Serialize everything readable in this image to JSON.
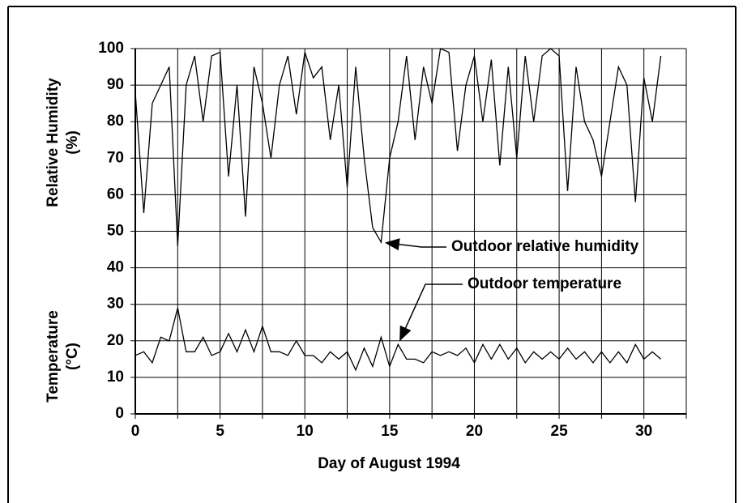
{
  "chart_data": {
    "type": "line",
    "xlabel": "Day of August 1994",
    "ylabel_top": [
      "Relative Humidity",
      "(%)"
    ],
    "ylabel_bottom": [
      "Temperature",
      "(°C)"
    ],
    "x": [
      0,
      0.5,
      1,
      1.5,
      2,
      2.5,
      3,
      3.5,
      4,
      4.5,
      5,
      5.5,
      6,
      6.5,
      7,
      7.5,
      8,
      8.5,
      9,
      9.5,
      10,
      10.5,
      11,
      11.5,
      12,
      12.5,
      13,
      13.5,
      14,
      14.5,
      15,
      15.5,
      16,
      16.5,
      17,
      17.5,
      18,
      18.5,
      19,
      19.5,
      20,
      20.5,
      21,
      21.5,
      22,
      22.5,
      23,
      23.5,
      24,
      24.5,
      25,
      25.5,
      26,
      26.5,
      27,
      27.5,
      28,
      28.5,
      29,
      29.5,
      30,
      30.5,
      31
    ],
    "series": [
      {
        "name": "Outdoor relative humidity",
        "color": "#000000",
        "values": [
          88,
          55,
          85,
          90,
          95,
          46,
          90,
          98,
          80,
          98,
          99,
          65,
          90,
          54,
          95,
          85,
          70,
          90,
          98,
          82,
          99,
          92,
          95,
          75,
          90,
          62,
          95,
          70,
          51,
          47,
          70,
          80,
          98,
          75,
          95,
          85,
          100,
          99,
          72,
          90,
          98,
          80,
          97,
          68,
          95,
          70,
          98,
          80,
          98,
          100,
          98,
          61,
          95,
          80,
          75,
          65,
          80,
          95,
          90,
          58,
          92,
          80,
          98
        ]
      },
      {
        "name": "Outdoor temperature",
        "color": "#000000",
        "values": [
          16,
          17,
          14,
          21,
          20,
          29,
          17,
          17,
          21,
          16,
          17,
          22,
          17,
          23,
          17,
          24,
          17,
          17,
          16,
          20,
          16,
          16,
          14,
          17,
          15,
          17,
          12,
          18,
          13,
          21,
          13,
          19,
          15,
          15,
          14,
          17,
          16,
          17,
          16,
          18,
          14,
          19,
          15,
          19,
          15,
          18,
          14,
          17,
          15,
          17,
          15,
          18,
          15,
          17,
          14,
          17,
          14,
          17,
          14,
          19,
          15,
          17,
          15
        ]
      }
    ],
    "annotations": [
      {
        "text": "Outdoor relative humidity",
        "series": 0,
        "index": 29
      },
      {
        "text": "Outdoor temperature",
        "series": 1,
        "index": 31
      }
    ],
    "xlim": [
      0,
      32.5
    ],
    "xticks": [
      0,
      5,
      10,
      15,
      20,
      25,
      30
    ],
    "x_grid": [
      2.5,
      7.5,
      12.5,
      17.5,
      22.5,
      27.5,
      32.5
    ],
    "ylim": [
      0,
      100
    ],
    "yticks": [
      0,
      10,
      20,
      30,
      40,
      50,
      60,
      70,
      80,
      90,
      100
    ],
    "grid": true
  }
}
